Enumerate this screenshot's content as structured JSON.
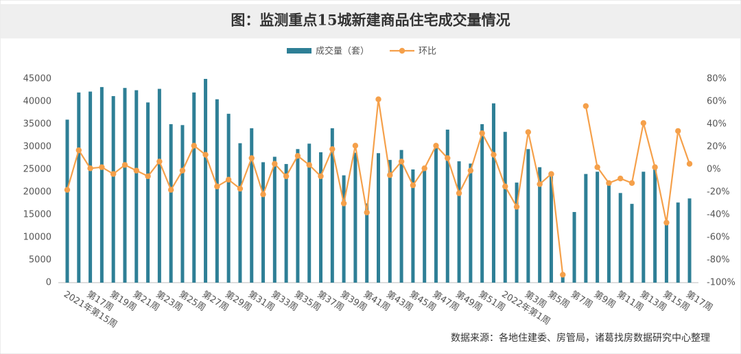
{
  "chart_data": {
    "type": "bar",
    "title": "图：监测重点15城新建商品住宅成交量情况",
    "source": "数据来源：各地住建委、房管局，诸葛找房数据研究中心整理",
    "categories": [
      "2021年第15周",
      null,
      "第17周",
      null,
      "第19周",
      null,
      "第21周",
      null,
      "第23周",
      null,
      "第25周",
      null,
      "第27周",
      null,
      "第29周",
      null,
      "第31周",
      null,
      "第33周",
      null,
      "第35周",
      null,
      "第37周",
      null,
      "第39周",
      null,
      "第41周",
      null,
      "第43周",
      null,
      "第45周",
      null,
      "第47周",
      null,
      "第49周",
      null,
      "第51周",
      null,
      "2022年第1周",
      null,
      "第3周",
      null,
      "第5周",
      null,
      "第7周",
      null,
      "第9周",
      null,
      "第11周",
      null,
      "第13周",
      null,
      "第15周",
      null,
      "第17周"
    ],
    "series": [
      {
        "name": "成交量（套）",
        "type": "bar",
        "color": "#2e7f96",
        "values": [
          36000,
          42000,
          42200,
          43200,
          41200,
          43000,
          42500,
          39800,
          42800,
          35000,
          34800,
          42000,
          45000,
          40500,
          37300,
          30800,
          34100,
          26600,
          27800,
          26200,
          29500,
          30700,
          28800,
          34100,
          23700,
          28700,
          17500,
          28600,
          27100,
          29300,
          25000,
          25800,
          29800,
          33800,
          26800,
          26300,
          35000,
          39600,
          33300,
          22100,
          29500,
          25500,
          24300,
          1700,
          15600,
          24000,
          24500,
          21500,
          19800,
          17400,
          24500,
          25000,
          13200,
          17700,
          18600
        ]
      },
      {
        "name": "环比",
        "type": "line",
        "axis": "y2",
        "color": "#f5a04a",
        "values": [
          -18,
          17,
          1,
          2,
          -4,
          4,
          -1,
          -6,
          7,
          -18,
          -1,
          21,
          13,
          -15,
          -9,
          -17,
          10,
          -22,
          5,
          -6,
          12,
          4,
          -6,
          18,
          -30,
          21,
          -38,
          62,
          -5,
          7,
          -14,
          1,
          21,
          10,
          -21,
          -1,
          32,
          13,
          -15,
          -33,
          33,
          -13,
          -4,
          -93,
          null,
          56,
          2,
          -12,
          -8,
          -12,
          41,
          2,
          -47,
          34,
          5
        ]
      }
    ],
    "ylim": [
      0,
      45000
    ],
    "yticks": [
      0,
      5000,
      10000,
      15000,
      20000,
      25000,
      30000,
      35000,
      40000,
      45000
    ],
    "y2lim": [
      -100,
      80
    ],
    "y2ticks": [
      {
        "value": -100,
        "label": "-100%"
      },
      {
        "value": -80,
        "label": "-80%"
      },
      {
        "value": -60,
        "label": "-60%"
      },
      {
        "value": -40,
        "label": "-40%"
      },
      {
        "value": -20,
        "label": "-20%"
      },
      {
        "value": 0,
        "label": "0%"
      },
      {
        "value": 20,
        "label": "20%"
      },
      {
        "value": 40,
        "label": "40%"
      },
      {
        "value": 60,
        "label": "60%"
      },
      {
        "value": 80,
        "label": "80%"
      }
    ],
    "legend": "top"
  }
}
